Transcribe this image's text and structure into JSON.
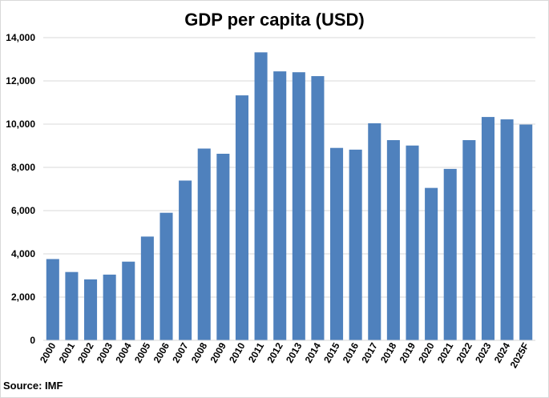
{
  "chart_data": {
    "type": "bar",
    "title": "GDP per capita (USD)",
    "source": "Source: IMF",
    "categories": [
      "2000",
      "2001",
      "2002",
      "2003",
      "2004",
      "2005",
      "2006",
      "2007",
      "2008",
      "2009",
      "2010",
      "2011",
      "2012",
      "2013",
      "2014",
      "2015",
      "2016",
      "2017",
      "2018",
      "2019",
      "2020",
      "2021",
      "2022",
      "2023",
      "2024",
      "2025F"
    ],
    "values": [
      3760,
      3160,
      2820,
      3040,
      3640,
      4800,
      5900,
      7390,
      8870,
      8630,
      11330,
      13320,
      12440,
      12400,
      12220,
      8900,
      8820,
      10040,
      9260,
      9010,
      7050,
      7930,
      9260,
      10330,
      10220,
      9980
    ],
    "ylim": [
      0,
      14000
    ],
    "yticks": [
      0,
      2000,
      4000,
      6000,
      8000,
      10000,
      12000,
      14000
    ],
    "ytick_labels": [
      "0",
      "2,000",
      "4,000",
      "6,000",
      "8,000",
      "10,000",
      "12,000",
      "14,000"
    ],
    "grid": true,
    "legend": "none",
    "bar_color": "#4f81bd",
    "grid_color": "#d9d9d9"
  }
}
